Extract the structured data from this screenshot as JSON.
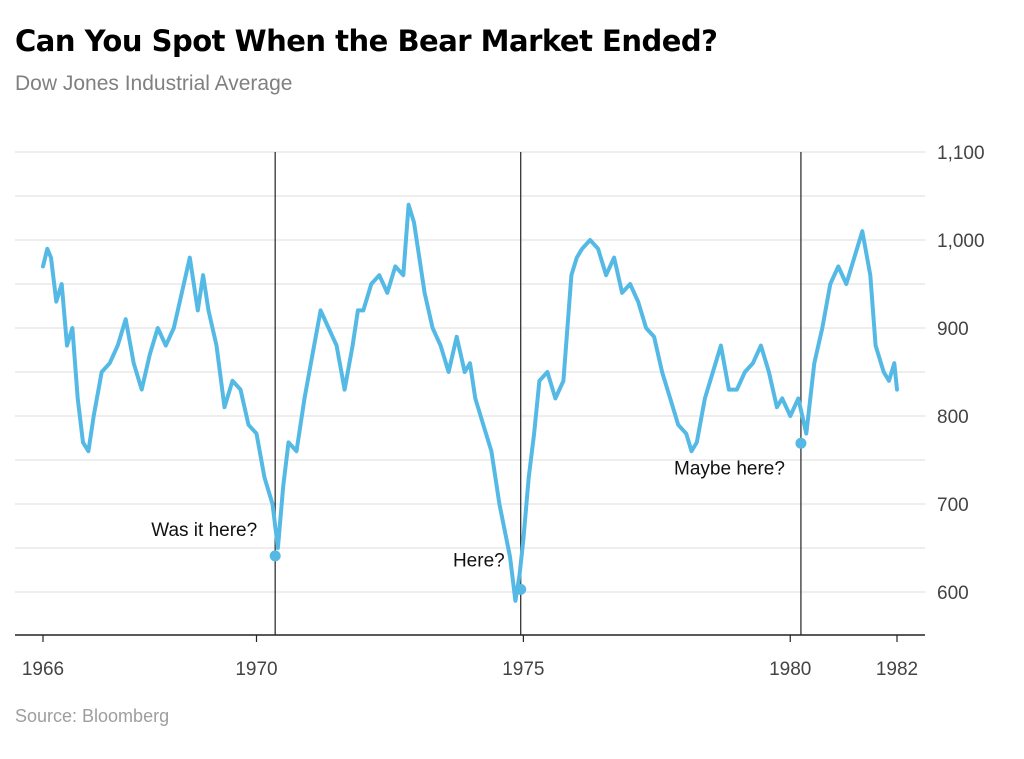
{
  "title": "Can You Spot When the Bear Market Ended?",
  "subtitle": "Dow Jones Industrial Average",
  "source": "Source: Bloomberg",
  "colors": {
    "line": "#55b9e6",
    "grid": "#e8e8e8",
    "axis": "#222222",
    "marker_line": "#333333"
  },
  "chart_data": {
    "type": "line",
    "title": "Can You Spot When the Bear Market Ended?",
    "subtitle": "Dow Jones Industrial Average",
    "xlim": [
      1966,
      1982
    ],
    "ylim": [
      550,
      1100
    ],
    "x_ticks": [
      1966,
      1970,
      1975,
      1980,
      1982
    ],
    "x_tick_labels": [
      "1966",
      "1970",
      "1975",
      "1980",
      "1982"
    ],
    "y_ticks": [
      600,
      700,
      800,
      900,
      1000,
      1100
    ],
    "y_tick_labels": [
      "600",
      "700",
      "800",
      "900",
      "1,000",
      "1,100"
    ],
    "grid": true,
    "series": [
      {
        "x": [
          1966.0,
          1966.08,
          1966.15,
          1966.25,
          1966.35,
          1966.45,
          1966.55,
          1966.65,
          1966.75,
          1966.85,
          1966.95,
          1967.1,
          1967.25,
          1967.4,
          1967.55,
          1967.7,
          1967.85,
          1968.0,
          1968.15,
          1968.3,
          1968.45,
          1968.6,
          1968.75,
          1968.9,
          1969.0,
          1969.1,
          1969.25,
          1969.4,
          1969.55,
          1969.7,
          1969.85,
          1970.0,
          1970.15,
          1970.3,
          1970.4,
          1970.5,
          1970.6,
          1970.75,
          1970.9,
          1971.05,
          1971.2,
          1971.35,
          1971.5,
          1971.65,
          1971.8,
          1971.9,
          1972.0,
          1972.15,
          1972.3,
          1972.45,
          1972.6,
          1972.75,
          1972.85,
          1972.95,
          1973.05,
          1973.15,
          1973.3,
          1973.45,
          1973.6,
          1973.75,
          1973.9,
          1974.0,
          1974.1,
          1974.25,
          1974.4,
          1974.55,
          1974.65,
          1974.75,
          1974.85,
          1974.93,
          1975.0,
          1975.1,
          1975.2,
          1975.3,
          1975.45,
          1975.6,
          1975.75,
          1975.9,
          1976.0,
          1976.1,
          1976.25,
          1976.4,
          1976.55,
          1976.7,
          1976.85,
          1977.0,
          1977.15,
          1977.3,
          1977.45,
          1977.6,
          1977.75,
          1977.9,
          1978.05,
          1978.15,
          1978.25,
          1978.4,
          1978.55,
          1978.7,
          1978.85,
          1979.0,
          1979.15,
          1979.3,
          1979.45,
          1979.6,
          1979.75,
          1979.85,
          1980.0,
          1980.15,
          1980.3,
          1980.45,
          1980.6,
          1980.75,
          1980.9,
          1981.05,
          1981.2,
          1981.35,
          1981.5,
          1981.6,
          1981.75,
          1981.85,
          1981.95,
          1982.0
        ],
        "values": [
          970,
          990,
          980,
          930,
          950,
          880,
          900,
          820,
          770,
          760,
          800,
          850,
          860,
          880,
          910,
          860,
          830,
          870,
          900,
          880,
          900,
          940,
          980,
          920,
          960,
          920,
          880,
          810,
          840,
          830,
          790,
          780,
          730,
          700,
          650,
          720,
          770,
          760,
          820,
          870,
          920,
          900,
          880,
          830,
          880,
          920,
          920,
          950,
          960,
          940,
          970,
          960,
          1040,
          1020,
          980,
          940,
          900,
          880,
          850,
          890,
          850,
          860,
          820,
          790,
          760,
          700,
          670,
          640,
          590,
          620,
          660,
          730,
          780,
          840,
          850,
          820,
          840,
          960,
          980,
          990,
          1000,
          990,
          960,
          980,
          940,
          950,
          930,
          900,
          890,
          850,
          820,
          790,
          780,
          760,
          770,
          820,
          850,
          880,
          830,
          830,
          850,
          860,
          880,
          850,
          810,
          820,
          800,
          820,
          780,
          860,
          900,
          950,
          970,
          950,
          980,
          1010,
          960,
          880,
          850,
          840,
          860,
          830
        ]
      }
    ],
    "annotations": [
      {
        "x": 1970.35,
        "y": 641,
        "label": "Was it here?"
      },
      {
        "x": 1974.95,
        "y": 603,
        "label": "Here?"
      },
      {
        "x": 1980.2,
        "y": 769,
        "label": "Maybe here?"
      }
    ]
  }
}
